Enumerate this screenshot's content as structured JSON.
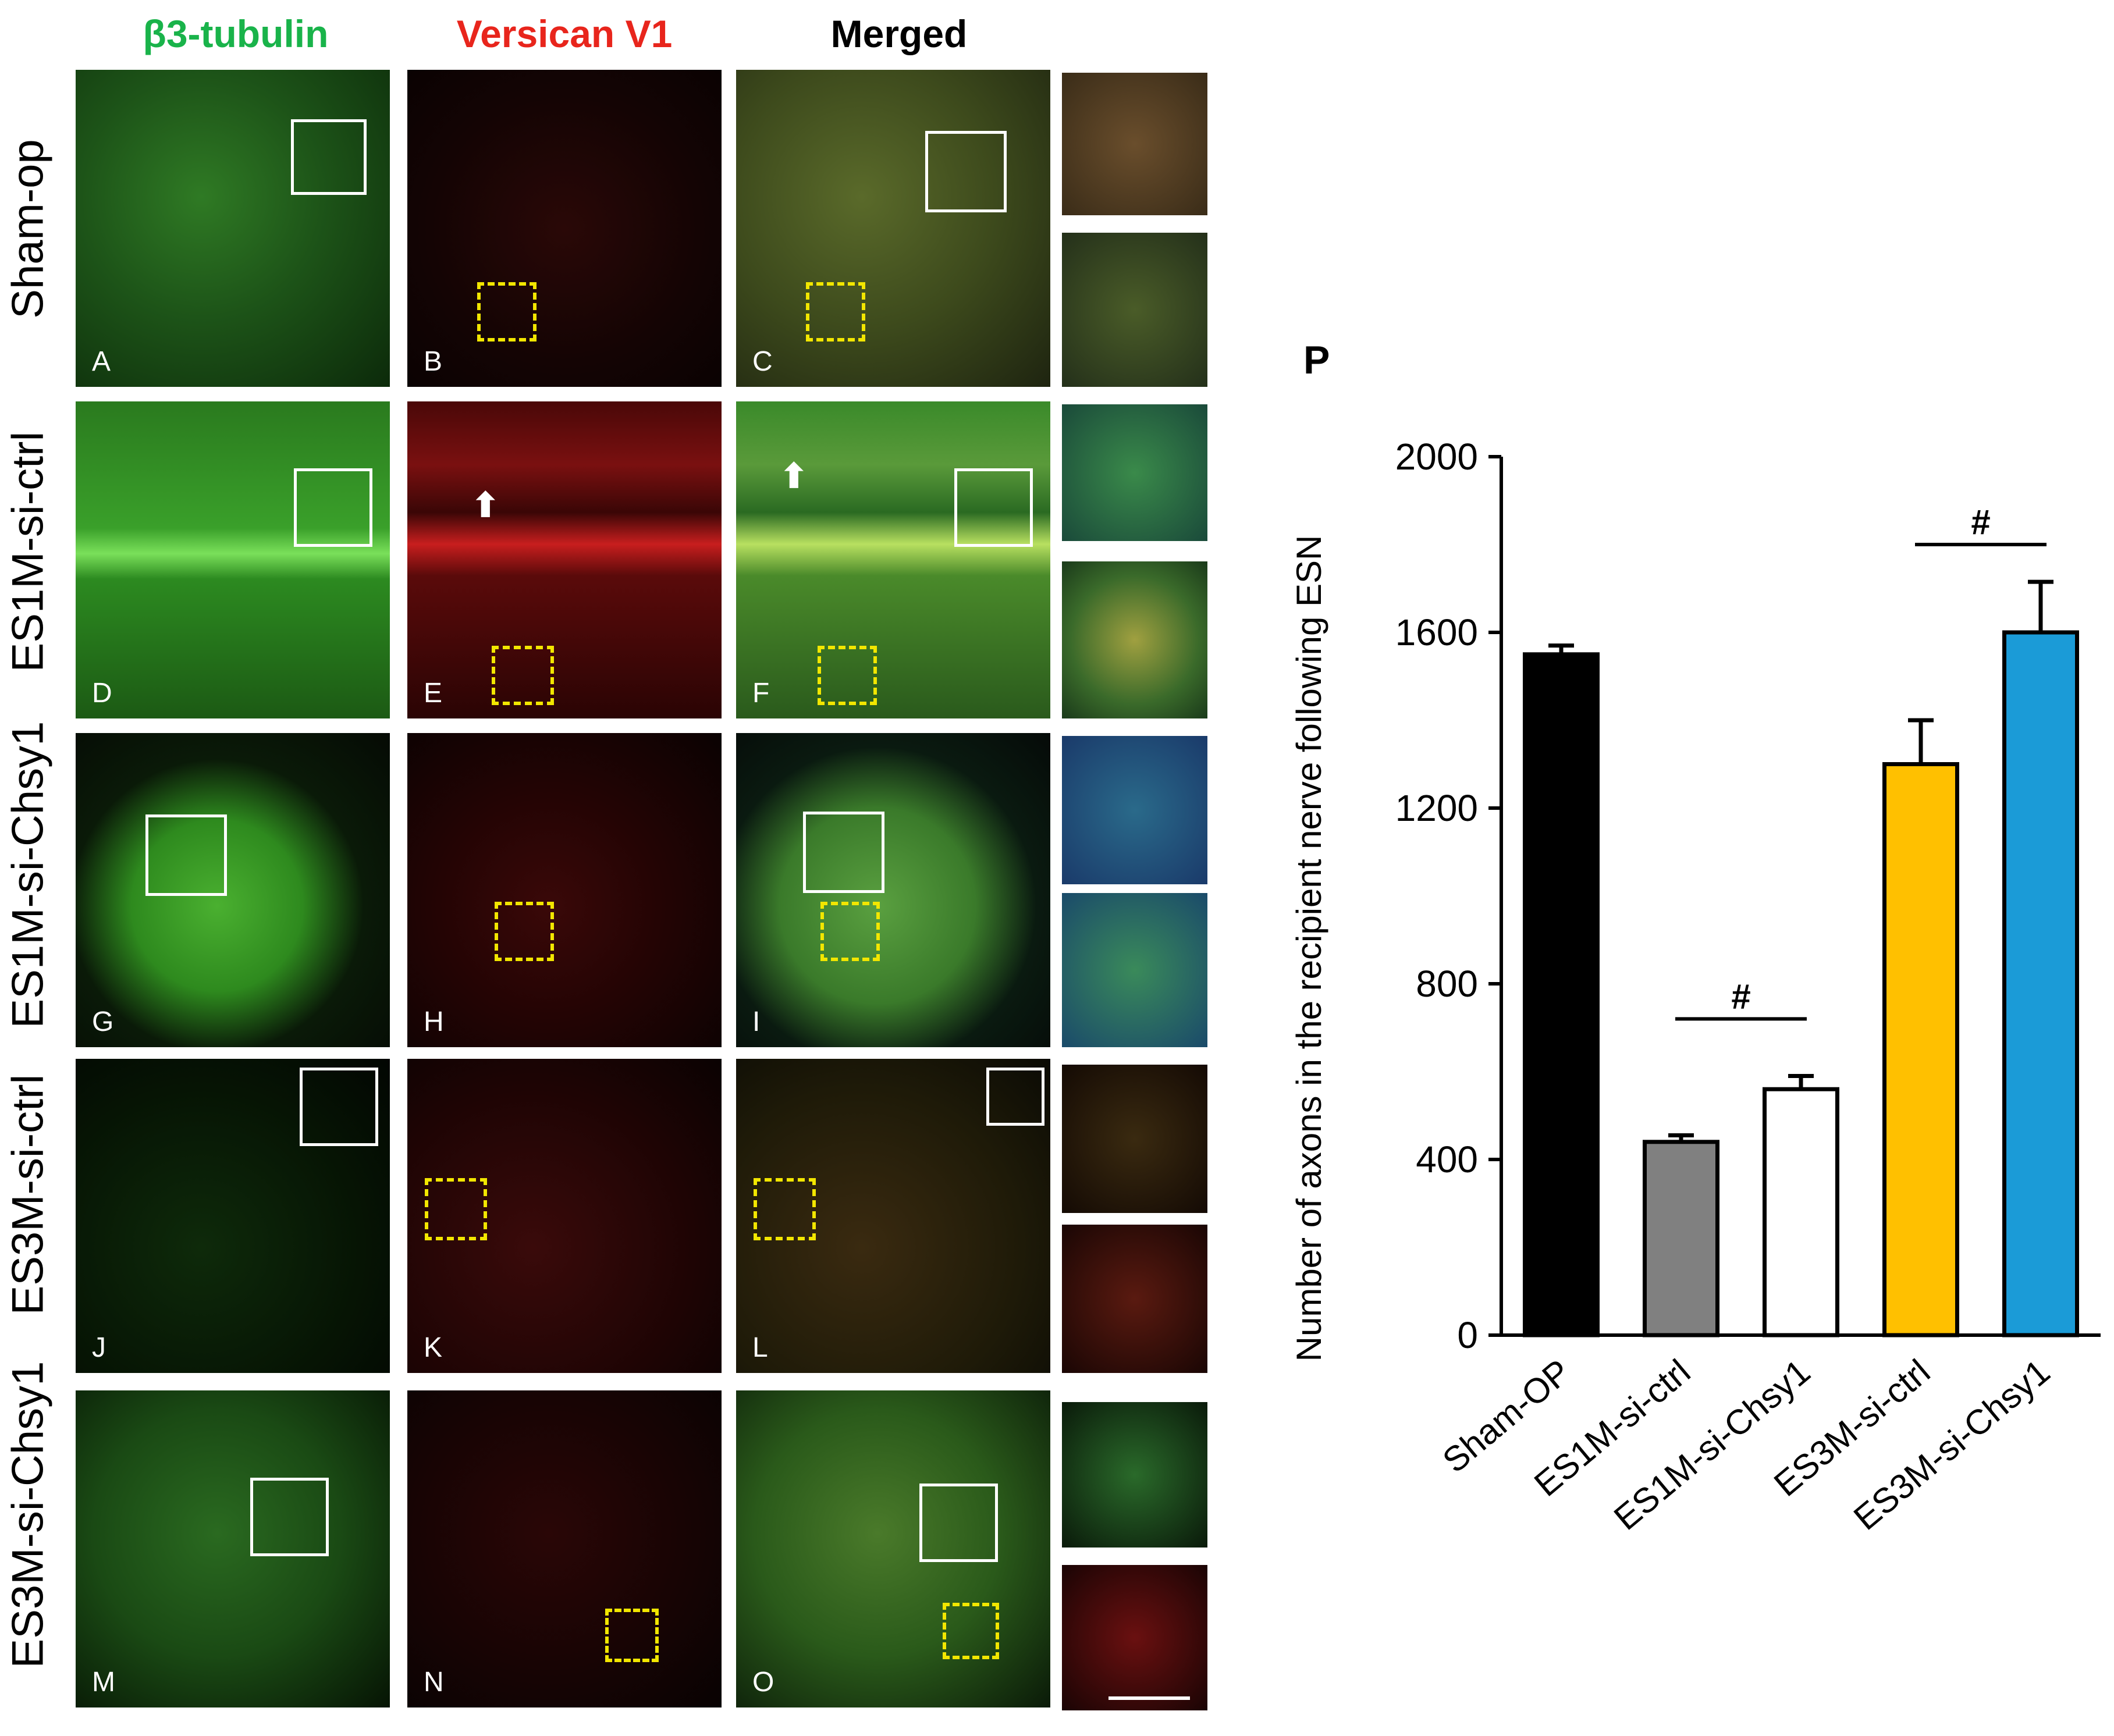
{
  "column_headers": [
    {
      "text": "β3-tubulin",
      "color": "#19b34a"
    },
    {
      "text": "Versican V1",
      "color": "#e8251c"
    },
    {
      "text": "Merged",
      "color": "#000000"
    }
  ],
  "row_labels": [
    "Sham-op",
    "ES1M-si-ctrl",
    "ES1M-si-Chsy1",
    "ES3M-si-ctrl",
    "ES3M-si-Chsy1"
  ],
  "panel_letters": [
    "A",
    "B",
    "C",
    "D",
    "E",
    "F",
    "G",
    "H",
    "I",
    "J",
    "K",
    "L",
    "M",
    "N",
    "O"
  ],
  "panel_p_letter": "P",
  "chart_data": {
    "type": "bar",
    "categories": [
      "Sham-OP",
      "ES1M-si-ctrl",
      "ES1M-si-Chsy1",
      "ES3M-si-ctrl",
      "ES3M-si-Chsy1"
    ],
    "values": [
      1550,
      440,
      560,
      1300,
      1600
    ],
    "errors": [
      20,
      15,
      30,
      100,
      115
    ],
    "colors": [
      "#000000",
      "#808080",
      "#ffffff",
      "#ffc000",
      "#1b9bd7"
    ],
    "ylabel": "Number of axons in the recipient nerve following ESN",
    "xlabel": "",
    "ylim": [
      0,
      2000
    ],
    "yticks": [
      0,
      400,
      800,
      1200,
      1600,
      2000
    ],
    "significance": [
      {
        "from": 1,
        "to": 2,
        "label": "#",
        "level": 720
      },
      {
        "from": 3,
        "to": 4,
        "label": "#",
        "level": 1800
      }
    ]
  }
}
